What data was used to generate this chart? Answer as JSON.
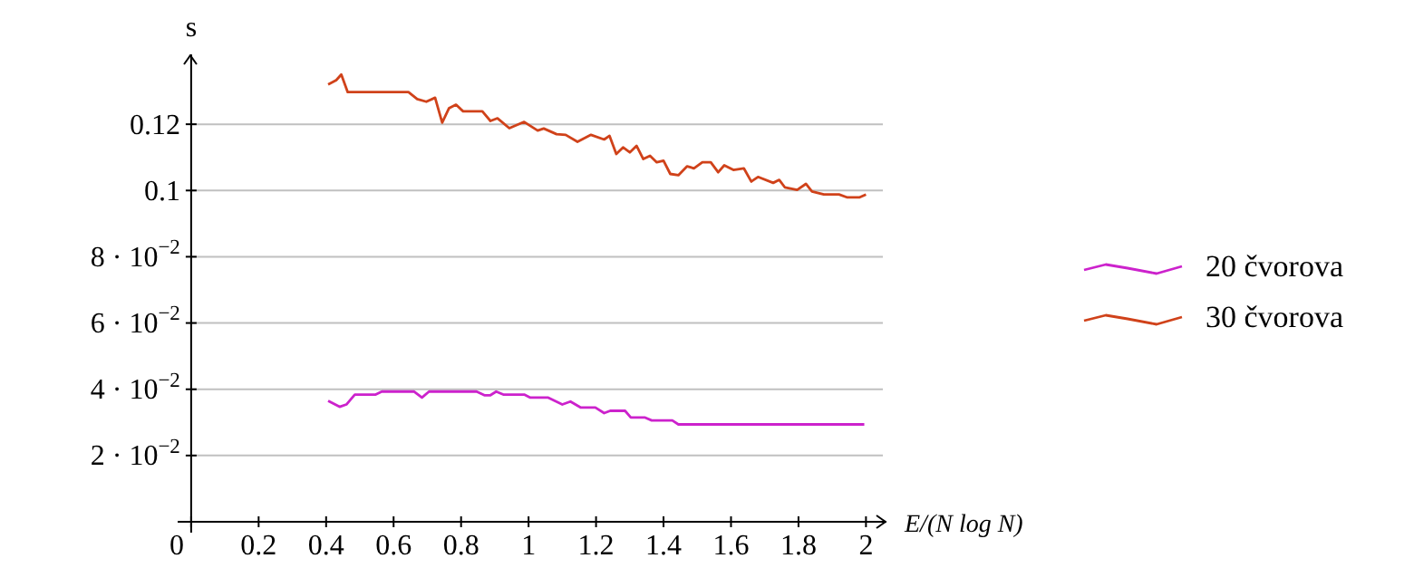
{
  "chart_data": {
    "type": "line",
    "xlabel": "E/(N log N)",
    "ylabel": "s",
    "xlim": [
      -0.04,
      2.05
    ],
    "ylim": [
      0,
      0.14
    ],
    "xticks": [
      0,
      0.2,
      0.4,
      0.6,
      0.8,
      1,
      1.2,
      1.4,
      1.6,
      1.8,
      2
    ],
    "yticks": [
      {
        "value": 0.02,
        "label": "2 · 10$^{−2}$"
      },
      {
        "value": 0.04,
        "label": "4 · 10$^{−2}$"
      },
      {
        "value": 0.06,
        "label": "6 · 10$^{−2}$"
      },
      {
        "value": 0.08,
        "label": "8 · 10$^{−2}$"
      },
      0.1,
      0.12
    ],
    "grid": "y",
    "legend": "right",
    "marker": "none",
    "series": [
      {
        "name": "20 čvorova",
        "color": "#cc22cc",
        "x": [
          0.406,
          0.44,
          0.46,
          0.485,
          0.547,
          0.565,
          0.661,
          0.684,
          0.705,
          0.846,
          0.869,
          0.887,
          0.904,
          0.925,
          0.987,
          1.004,
          1.057,
          1.1,
          1.124,
          1.154,
          1.198,
          1.224,
          1.242,
          1.286,
          1.303,
          1.344,
          1.365,
          1.426,
          1.444,
          1.995
        ],
        "values": [
          0.0365,
          0.0347,
          0.0354,
          0.0384,
          0.0384,
          0.0393,
          0.0393,
          0.0375,
          0.0393,
          0.0393,
          0.0382,
          0.0382,
          0.0393,
          0.0384,
          0.0384,
          0.0375,
          0.0375,
          0.0354,
          0.0363,
          0.0345,
          0.0345,
          0.0328,
          0.0335,
          0.0335,
          0.0315,
          0.0315,
          0.0306,
          0.0306,
          0.0294,
          0.0294
        ]
      },
      {
        "name": "30 čvorova",
        "color": "#d0421a",
        "x": [
          0.406,
          0.43,
          0.445,
          0.464,
          0.644,
          0.67,
          0.697,
          0.723,
          0.744,
          0.764,
          0.785,
          0.806,
          0.863,
          0.887,
          0.908,
          0.943,
          0.987,
          1.027,
          1.045,
          1.083,
          1.11,
          1.145,
          1.185,
          1.224,
          1.24,
          1.26,
          1.28,
          1.3,
          1.32,
          1.34,
          1.36,
          1.38,
          1.4,
          1.42,
          1.444,
          1.47,
          1.49,
          1.515,
          1.54,
          1.562,
          1.58,
          1.607,
          1.638,
          1.66,
          1.68,
          1.725,
          1.743,
          1.76,
          1.796,
          1.822,
          1.84,
          1.875,
          1.92,
          1.945,
          1.98,
          2.0
        ],
        "values": [
          0.132,
          0.1333,
          0.135,
          0.1297,
          0.1297,
          0.1276,
          0.1268,
          0.128,
          0.1205,
          0.1248,
          0.1259,
          0.1239,
          0.1239,
          0.121,
          0.1218,
          0.1188,
          0.1207,
          0.1181,
          0.1187,
          0.117,
          0.1168,
          0.1147,
          0.1168,
          0.1154,
          0.1165,
          0.111,
          0.113,
          0.1115,
          0.1135,
          0.1095,
          0.1105,
          0.1085,
          0.109,
          0.105,
          0.1046,
          0.1073,
          0.1067,
          0.1085,
          0.1085,
          0.1055,
          0.1076,
          0.1062,
          0.1067,
          0.1027,
          0.1041,
          0.1023,
          0.1032,
          0.1009,
          0.1002,
          0.102,
          0.0997,
          0.0988,
          0.0988,
          0.0979,
          0.0979,
          0.0988
        ]
      }
    ]
  }
}
